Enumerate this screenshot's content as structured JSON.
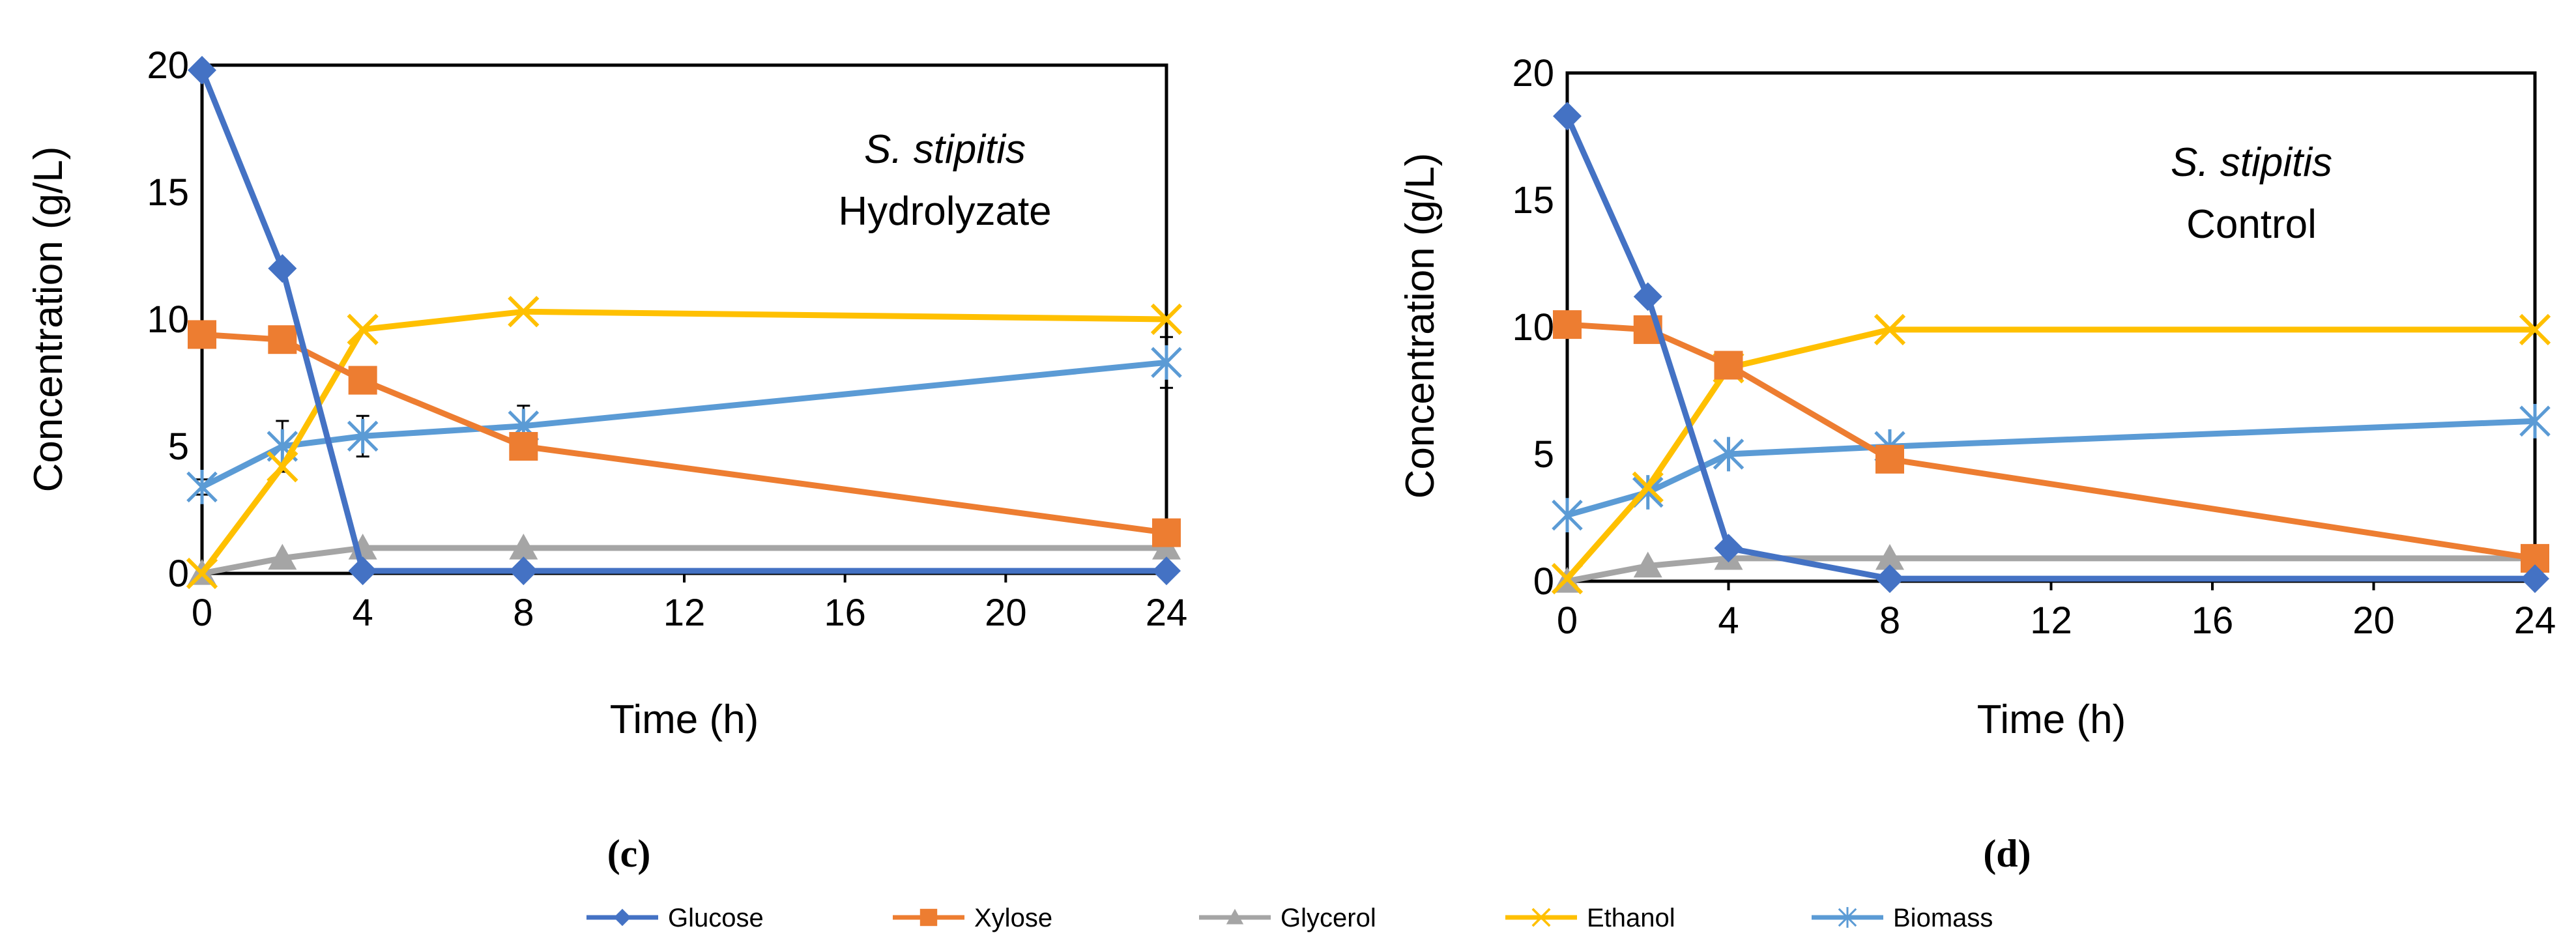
{
  "chart_data": [
    {
      "type": "line",
      "panel_label": "(c)",
      "annotation": {
        "organism": "S. stipitis",
        "condition": "Hydrolyzate"
      },
      "xlabel": "Time (h)",
      "ylabel": "Concentration (g/L)",
      "x_ticks": [
        0,
        4,
        8,
        12,
        16,
        20,
        24
      ],
      "y_ticks": [
        0,
        5,
        10,
        15,
        20
      ],
      "xlim": [
        0,
        24
      ],
      "ylim": [
        0,
        20
      ],
      "x": [
        0,
        2,
        4,
        8,
        24
      ],
      "series": [
        {
          "name": "Glucose",
          "values": [
            19.8,
            12.0,
            0.1,
            0.1,
            0.1
          ]
        },
        {
          "name": "Xylose",
          "values": [
            9.4,
            9.2,
            7.6,
            5.0,
            1.6
          ]
        },
        {
          "name": "Glycerol",
          "values": [
            0.0,
            0.6,
            1.0,
            1.0,
            1.0
          ]
        },
        {
          "name": "Ethanol",
          "values": [
            0.0,
            4.2,
            9.6,
            10.3,
            10.0
          ]
        },
        {
          "name": "Biomass",
          "values": [
            3.4,
            5.0,
            5.4,
            5.8,
            8.3
          ],
          "errors": [
            0.3,
            1.0,
            0.8,
            0.8,
            1.0
          ]
        }
      ]
    },
    {
      "type": "line",
      "panel_label": "(d)",
      "annotation": {
        "organism": "S. stipitis",
        "condition": "Control"
      },
      "xlabel": "Time (h)",
      "ylabel": "Concentration (g/L)",
      "x_ticks": [
        0,
        4,
        8,
        12,
        16,
        20,
        24
      ],
      "y_ticks": [
        0,
        5,
        10,
        15,
        20
      ],
      "xlim": [
        0,
        24
      ],
      "ylim": [
        0,
        20
      ],
      "x": [
        0,
        2,
        4,
        8,
        24
      ],
      "series": [
        {
          "name": "Glucose",
          "values": [
            18.3,
            11.2,
            1.3,
            0.1,
            0.1
          ]
        },
        {
          "name": "Xylose",
          "values": [
            10.1,
            9.9,
            8.5,
            4.8,
            0.9
          ]
        },
        {
          "name": "Glycerol",
          "values": [
            0.0,
            0.6,
            0.9,
            0.9,
            0.9
          ]
        },
        {
          "name": "Ethanol",
          "values": [
            0.1,
            3.7,
            8.4,
            9.9,
            9.9
          ]
        },
        {
          "name": "Biomass",
          "values": [
            2.6,
            3.5,
            5.0,
            5.3,
            6.3
          ]
        }
      ]
    }
  ],
  "legend": [
    {
      "name": "Glucose",
      "color": "#4472C4",
      "marker": "diamond"
    },
    {
      "name": "Xylose",
      "color": "#ED7D31",
      "marker": "square"
    },
    {
      "name": "Glycerol",
      "color": "#A5A5A5",
      "marker": "triangle"
    },
    {
      "name": "Ethanol",
      "color": "#FFC000",
      "marker": "x"
    },
    {
      "name": "Biomass",
      "color": "#4472C4",
      "marker": "star"
    }
  ],
  "series_colors": {
    "Glucose": "#4472C4",
    "Xylose": "#ED7D31",
    "Glycerol": "#A5A5A5",
    "Ethanol": "#FFC000",
    "Biomass": "#5B9BD5"
  }
}
